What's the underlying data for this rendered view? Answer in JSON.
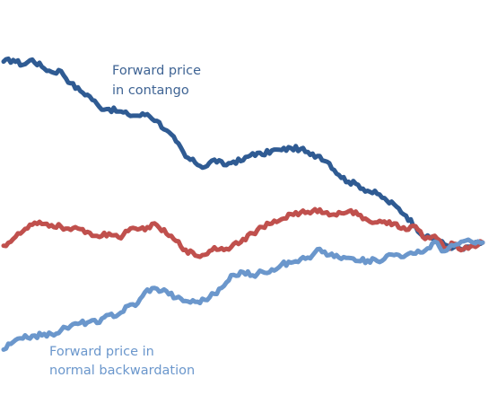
{
  "chart_data": {
    "type": "line",
    "grid": false,
    "legend": "none",
    "xlim": [
      0,
      100
    ],
    "ylim": [
      0,
      100
    ],
    "series": [
      {
        "key": "contango",
        "color": "#2f5b93",
        "values": [
          [
            0,
            84.4
          ],
          [
            2,
            84.8
          ],
          [
            4,
            83.6
          ],
          [
            6,
            84.9
          ],
          [
            8,
            83.1
          ],
          [
            10,
            81.8
          ],
          [
            12,
            82.0
          ],
          [
            14,
            78.9
          ],
          [
            16,
            77.0
          ],
          [
            18,
            75.6
          ],
          [
            20,
            72.9
          ],
          [
            22,
            72.4
          ],
          [
            24,
            71.8
          ],
          [
            26,
            71.0
          ],
          [
            28,
            70.7
          ],
          [
            30,
            71.1
          ],
          [
            32,
            69.4
          ],
          [
            34,
            67.0
          ],
          [
            36,
            64.2
          ],
          [
            38,
            60.3
          ],
          [
            40,
            58.8
          ],
          [
            42,
            57.7
          ],
          [
            44,
            59.6
          ],
          [
            46,
            58.2
          ],
          [
            48,
            59.1
          ],
          [
            50,
            59.4
          ],
          [
            52,
            61.2
          ],
          [
            54,
            60.8
          ],
          [
            56,
            61.9
          ],
          [
            58,
            62.0
          ],
          [
            60,
            62.5
          ],
          [
            62,
            62.3
          ],
          [
            64,
            60.8
          ],
          [
            66,
            60.5
          ],
          [
            68,
            58.7
          ],
          [
            70,
            55.7
          ],
          [
            72,
            54.0
          ],
          [
            74,
            53.2
          ],
          [
            76,
            51.7
          ],
          [
            78,
            50.9
          ],
          [
            80,
            49.2
          ],
          [
            82,
            47.7
          ],
          [
            84,
            45.4
          ],
          [
            86,
            42.7
          ],
          [
            88,
            39.8
          ],
          [
            90,
            39.7
          ],
          [
            92,
            38.1
          ],
          [
            94,
            37.4
          ],
          [
            96,
            36.8
          ],
          [
            98,
            38.0
          ],
          [
            100,
            38.6
          ]
        ]
      },
      {
        "key": "spot",
        "color": "#c0504d",
        "values": [
          [
            0,
            37.8
          ],
          [
            2,
            39.5
          ],
          [
            4,
            41.4
          ],
          [
            6,
            43.1
          ],
          [
            8,
            43.3
          ],
          [
            10,
            43.0
          ],
          [
            12,
            42.6
          ],
          [
            14,
            41.8
          ],
          [
            16,
            42.0
          ],
          [
            18,
            41.1
          ],
          [
            20,
            40.0
          ],
          [
            22,
            40.9
          ],
          [
            24,
            39.9
          ],
          [
            26,
            41.5
          ],
          [
            28,
            41.9
          ],
          [
            30,
            42.5
          ],
          [
            32,
            43.0
          ],
          [
            34,
            40.8
          ],
          [
            36,
            39.0
          ],
          [
            38,
            36.8
          ],
          [
            40,
            35.3
          ],
          [
            42,
            35.5
          ],
          [
            44,
            37.4
          ],
          [
            46,
            36.7
          ],
          [
            48,
            38.2
          ],
          [
            50,
            39.5
          ],
          [
            52,
            40.9
          ],
          [
            54,
            42.5
          ],
          [
            56,
            43.4
          ],
          [
            58,
            44.5
          ],
          [
            60,
            45.8
          ],
          [
            62,
            46.2
          ],
          [
            64,
            46.0
          ],
          [
            66,
            47.0
          ],
          [
            68,
            45.5
          ],
          [
            70,
            46.3
          ],
          [
            72,
            46.5
          ],
          [
            74,
            45.6
          ],
          [
            76,
            44.3
          ],
          [
            78,
            43.7
          ],
          [
            80,
            43.3
          ],
          [
            82,
            43.4
          ],
          [
            84,
            41.8
          ],
          [
            86,
            42.7
          ],
          [
            88,
            39.5
          ],
          [
            90,
            40.3
          ],
          [
            92,
            36.9
          ],
          [
            94,
            38.3
          ],
          [
            96,
            36.9
          ],
          [
            98,
            37.8
          ],
          [
            100,
            38.6
          ]
        ]
      },
      {
        "key": "backwardation",
        "color": "#6b97cc",
        "values": [
          [
            0,
            11.5
          ],
          [
            2,
            13.4
          ],
          [
            4,
            14.3
          ],
          [
            6,
            15.0
          ],
          [
            8,
            15.1
          ],
          [
            10,
            15.4
          ],
          [
            12,
            16.4
          ],
          [
            14,
            17.5
          ],
          [
            16,
            18.2
          ],
          [
            18,
            18.6
          ],
          [
            20,
            18.3
          ],
          [
            22,
            20.3
          ],
          [
            24,
            20.4
          ],
          [
            26,
            22.6
          ],
          [
            28,
            23.2
          ],
          [
            30,
            26.7
          ],
          [
            32,
            26.9
          ],
          [
            34,
            26.3
          ],
          [
            36,
            24.6
          ],
          [
            38,
            23.8
          ],
          [
            40,
            23.6
          ],
          [
            42,
            24.1
          ],
          [
            44,
            25.6
          ],
          [
            46,
            27.6
          ],
          [
            48,
            30.4
          ],
          [
            50,
            31.1
          ],
          [
            52,
            30.3
          ],
          [
            54,
            31.2
          ],
          [
            56,
            31.8
          ],
          [
            58,
            33.0
          ],
          [
            60,
            33.5
          ],
          [
            62,
            34.4
          ],
          [
            64,
            34.6
          ],
          [
            66,
            37.0
          ],
          [
            68,
            35.4
          ],
          [
            70,
            34.8
          ],
          [
            72,
            34.7
          ],
          [
            74,
            33.9
          ],
          [
            76,
            34.1
          ],
          [
            78,
            33.9
          ],
          [
            80,
            35.3
          ],
          [
            82,
            35.6
          ],
          [
            84,
            35.4
          ],
          [
            86,
            35.8
          ],
          [
            88,
            36.6
          ],
          [
            90,
            38.8
          ],
          [
            92,
            36.4
          ],
          [
            94,
            37.8
          ],
          [
            96,
            38.9
          ],
          [
            98,
            38.6
          ],
          [
            100,
            38.6
          ]
        ]
      }
    ],
    "annotations": [
      {
        "key": "contango-label",
        "color": "#3f6494",
        "lines": [
          "Forward price",
          "in contango"
        ]
      },
      {
        "key": "backwardation-label",
        "color": "#6b97cc",
        "lines": [
          "Forward price in",
          "normal backwardation"
        ]
      }
    ]
  }
}
